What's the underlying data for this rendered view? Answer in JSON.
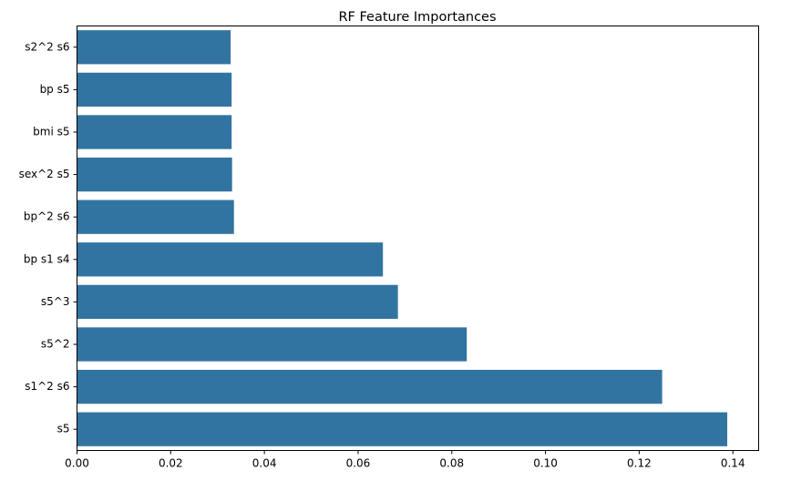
{
  "chart_data": {
    "type": "bar",
    "orientation": "horizontal",
    "title": "RF Feature Importances",
    "xlabel": "",
    "ylabel": "",
    "categories": [
      "s2^2 s6",
      "bp s5",
      "bmi s5",
      "sex^2 s5",
      "bp^2 s6",
      "bp s1 s4",
      "s5^3",
      "s5^2",
      "s1^2 s6",
      "s5"
    ],
    "values": [
      0.0328,
      0.033,
      0.033,
      0.0331,
      0.0335,
      0.0653,
      0.0685,
      0.0832,
      0.1249,
      0.1388
    ],
    "xlim": [
      0,
      0.1455
    ],
    "xticks": [
      "0.00",
      "0.02",
      "0.04",
      "0.06",
      "0.08",
      "0.10",
      "0.12",
      "0.14"
    ],
    "grid": false,
    "bar_color": "#3274a1"
  }
}
